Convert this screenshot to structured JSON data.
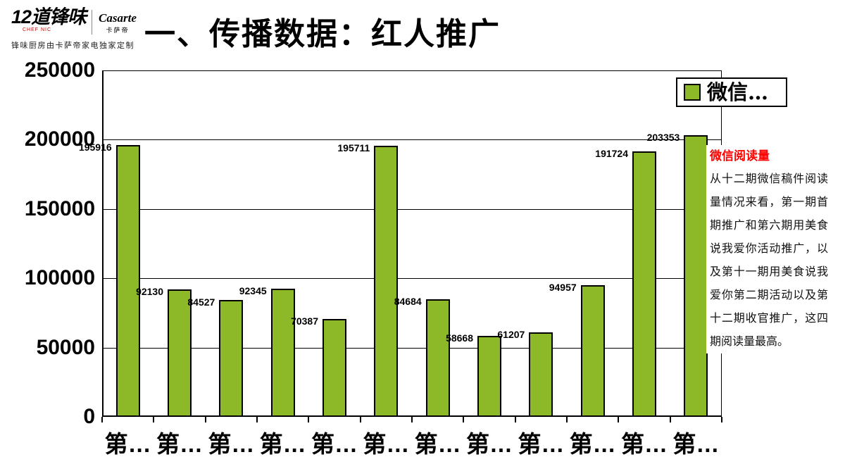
{
  "header": {
    "logo": {
      "brand_main": "12道锋味",
      "brand_sub": "CHEF NIC",
      "partner": "Casarte",
      "partner_sub": "卡萨帝",
      "tagline": "锋味厨房由卡萨帝家电独家定制"
    },
    "title": "一、传播数据：红人推广"
  },
  "chart_data": {
    "type": "bar",
    "title": "",
    "legend": "微信…",
    "legend_position": "top-right",
    "categories": [
      "第…",
      "第…",
      "第…",
      "第…",
      "第…",
      "第…",
      "第…",
      "第…",
      "第…",
      "第…",
      "第…",
      "第…"
    ],
    "values": [
      195916,
      92130,
      84527,
      92345,
      70387,
      195711,
      84684,
      58668,
      61207,
      94957,
      191724,
      203353
    ],
    "ylim": [
      0,
      250000
    ],
    "ytick_step": 50000,
    "yticks": [
      "250000",
      "200000",
      "150000",
      "100000",
      "50000",
      "0"
    ],
    "grid": true,
    "bar_color": "#8DB928",
    "bar_border_color": "#000000"
  },
  "annotation": {
    "title": "微信阅读量",
    "title_color": "#FF0000",
    "body": "从十二期微信稿件阅读量情况来看，第一期首期推广和第六期用美食说我爱你活动推广，以及第十一期用美食说我爱你第二期活动以及第十二期收官推广，这四期阅读量最高。"
  }
}
